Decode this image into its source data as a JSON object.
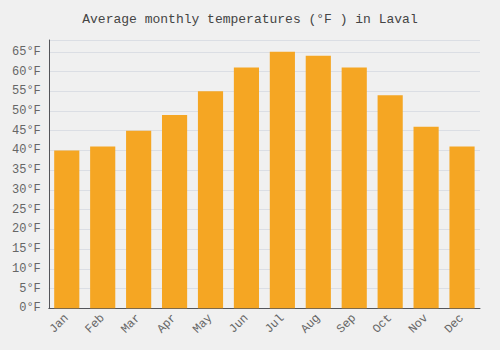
{
  "chart_data": {
    "type": "bar",
    "title": "Average monthly temperatures (°F ) in Laval",
    "categories": [
      "Jan",
      "Feb",
      "Mar",
      "Apr",
      "May",
      "Jun",
      "Jul",
      "Aug",
      "Sep",
      "Oct",
      "Nov",
      "Dec"
    ],
    "values": [
      40,
      41,
      45,
      49,
      55,
      61,
      65,
      64,
      61,
      54,
      46,
      41
    ],
    "color": "#F5A623",
    "ylim": [
      0,
      68
    ],
    "yticks": [
      {
        "value": 0,
        "label": "0°F"
      },
      {
        "value": 5,
        "label": "5°F"
      },
      {
        "value": 10,
        "label": "10°F"
      },
      {
        "value": 15,
        "label": "15°F"
      },
      {
        "value": 20,
        "label": "20°F"
      },
      {
        "value": 25,
        "label": "25°F"
      },
      {
        "value": 30,
        "label": "30°F"
      },
      {
        "value": 35,
        "label": "35°F"
      },
      {
        "value": 40,
        "label": "40°F"
      },
      {
        "value": 45,
        "label": "45°F"
      },
      {
        "value": 50,
        "label": "50°F"
      },
      {
        "value": 55,
        "label": "55°F"
      },
      {
        "value": 60,
        "label": "60°F"
      },
      {
        "value": 65,
        "label": "65°F"
      }
    ],
    "grid": true
  }
}
